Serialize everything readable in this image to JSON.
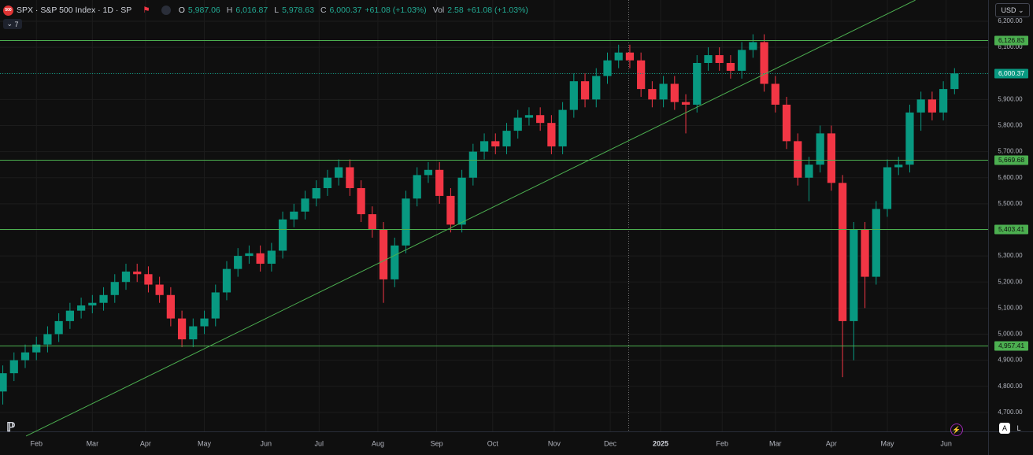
{
  "header": {
    "symbol": "SPX · S&P 500 Index · 1D · SP",
    "o_label": "O",
    "open": "5,987.06",
    "h_label": "H",
    "high": "6,016.87",
    "l_label": "L",
    "low": "5,978.63",
    "c_label": "C",
    "close": "6,000.37",
    "change": "+61.08 (+1.03%)",
    "vol_label": "Vol",
    "vol": "2.58",
    "vol_change": "+61.08 (+1.03%)",
    "indicators_count": "7",
    "currency": "USD",
    "scale_buttons": [
      "A",
      "L"
    ]
  },
  "chart_data": {
    "type": "candlestick",
    "up_color": "#089981",
    "down_color": "#f23645",
    "xlim": [
      0,
      353
    ],
    "ylim": [
      4627,
      6281.5
    ],
    "xticks": [
      {
        "value": 13,
        "label": "Feb"
      },
      {
        "value": 33,
        "label": "Mar"
      },
      {
        "value": 52,
        "label": "Apr"
      },
      {
        "value": 73,
        "label": "May"
      },
      {
        "value": 95,
        "label": "Jun"
      },
      {
        "value": 114,
        "label": "Jul"
      },
      {
        "value": 135,
        "label": "Aug"
      },
      {
        "value": 156,
        "label": "Sep"
      },
      {
        "value": 176,
        "label": "Oct"
      },
      {
        "value": 198,
        "label": "Nov"
      },
      {
        "value": 218,
        "label": "Dec"
      },
      {
        "value": 236,
        "label": "2025"
      },
      {
        "value": 258,
        "label": "Feb"
      },
      {
        "value": 277,
        "label": "Mar"
      },
      {
        "value": 297,
        "label": "Apr"
      },
      {
        "value": 317,
        "label": "May"
      },
      {
        "value": 338,
        "label": "Jun"
      }
    ],
    "yticks": [
      {
        "value": 6200,
        "label": "6,200.00"
      },
      {
        "value": 6100,
        "label": "6,100.00"
      },
      {
        "value": 6000,
        "label": "6,000.00"
      },
      {
        "value": 5900,
        "label": "5,900.00"
      },
      {
        "value": 5800,
        "label": "5,800.00"
      },
      {
        "value": 5700,
        "label": "5,700.00"
      },
      {
        "value": 5600,
        "label": "5,600.00"
      },
      {
        "value": 5500,
        "label": "5,500.00"
      },
      {
        "value": 5400,
        "label": "5,400.00"
      },
      {
        "value": 5300,
        "label": "5,300.00"
      },
      {
        "value": 5200,
        "label": "5,200.00"
      },
      {
        "value": 5100,
        "label": "5,100.00"
      },
      {
        "value": 5000,
        "label": "5,000.00"
      },
      {
        "value": 4900,
        "label": "4,900.00"
      },
      {
        "value": 4800,
        "label": "4,800.00"
      },
      {
        "value": 4700,
        "label": "4,700.00"
      }
    ],
    "grid": true,
    "x": [
      1,
      5,
      9,
      13,
      17,
      21,
      25,
      29,
      33,
      37,
      41,
      45,
      49,
      53,
      57,
      61,
      65,
      69,
      73,
      77,
      81,
      85,
      89,
      93,
      97,
      101,
      105,
      109,
      113,
      117,
      121,
      125,
      129,
      133,
      137,
      141,
      145,
      149,
      153,
      157,
      161,
      165,
      169,
      173,
      177,
      181,
      185,
      189,
      193,
      197,
      201,
      205,
      209,
      213,
      217,
      221,
      225,
      229,
      233,
      237,
      241,
      245,
      249,
      253,
      257,
      261,
      265,
      269,
      273,
      277,
      281,
      285,
      289,
      293,
      297,
      301,
      305,
      309,
      313,
      317,
      321,
      325,
      329,
      333,
      337,
      341
    ],
    "open": [
      4780,
      4850,
      4900,
      4930,
      4960,
      5000,
      5050,
      5090,
      5110,
      5120,
      5150,
      5200,
      5240,
      5230,
      5190,
      5150,
      5060,
      4980,
      5030,
      5060,
      5160,
      5250,
      5300,
      5310,
      5270,
      5320,
      5440,
      5470,
      5520,
      5560,
      5600,
      5640,
      5560,
      5460,
      5400,
      5210,
      5340,
      5520,
      5610,
      5630,
      5530,
      5420,
      5600,
      5700,
      5740,
      5720,
      5780,
      5830,
      5840,
      5810,
      5720,
      5860,
      5970,
      5900,
      5990,
      6050,
      6080,
      6050,
      5940,
      5900,
      5960,
      5890,
      5880,
      6040,
      6070,
      6040,
      6010,
      6090,
      6120,
      5960,
      5880,
      5740,
      5600,
      5650,
      5770,
      5580,
      5050,
      5400,
      5220,
      5480,
      5640,
      5650,
      5850,
      5900,
      5850,
      5940
    ],
    "high": [
      4880,
      4930,
      4960,
      4990,
      5030,
      5080,
      5120,
      5140,
      5150,
      5180,
      5230,
      5270,
      5270,
      5260,
      5220,
      5180,
      5090,
      5060,
      5090,
      5190,
      5280,
      5330,
      5340,
      5340,
      5350,
      5470,
      5500,
      5550,
      5590,
      5630,
      5670,
      5670,
      5590,
      5490,
      5430,
      5370,
      5550,
      5640,
      5660,
      5660,
      5560,
      5630,
      5730,
      5770,
      5770,
      5810,
      5860,
      5870,
      5870,
      5840,
      5890,
      6000,
      6000,
      6020,
      6080,
      6110,
      6110,
      6080,
      5970,
      5990,
      5990,
      5920,
      6070,
      6100,
      6100,
      6070,
      6120,
      6150,
      6150,
      5990,
      5910,
      5770,
      5680,
      5800,
      5800,
      5610,
      5430,
      5430,
      5510,
      5670,
      5680,
      5880,
      5930,
      5930,
      5970,
      6020
    ],
    "low": [
      4730,
      4820,
      4870,
      4900,
      4930,
      4970,
      5020,
      5060,
      5080,
      5090,
      5120,
      5170,
      5200,
      5160,
      5120,
      5030,
      4950,
      4950,
      5000,
      5030,
      5130,
      5220,
      5270,
      5240,
      5240,
      5290,
      5410,
      5440,
      5490,
      5530,
      5570,
      5530,
      5430,
      5370,
      5120,
      5180,
      5310,
      5490,
      5580,
      5500,
      5390,
      5390,
      5570,
      5670,
      5690,
      5690,
      5750,
      5800,
      5780,
      5690,
      5690,
      5830,
      5870,
      5870,
      5960,
      6020,
      6020,
      5910,
      5870,
      5870,
      5860,
      5770,
      5850,
      6010,
      6010,
      5980,
      5980,
      6060,
      5930,
      5850,
      5710,
      5570,
      5510,
      5620,
      5550,
      4835,
      4900,
      5100,
      5190,
      5450,
      5610,
      5620,
      5780,
      5820,
      5820,
      5920
    ],
    "close": [
      4850,
      4900,
      4930,
      4960,
      5000,
      5050,
      5090,
      5110,
      5120,
      5150,
      5200,
      5240,
      5230,
      5190,
      5150,
      5060,
      4980,
      5030,
      5060,
      5160,
      5250,
      5300,
      5310,
      5270,
      5320,
      5440,
      5470,
      5520,
      5560,
      5600,
      5640,
      5560,
      5460,
      5400,
      5210,
      5340,
      5520,
      5610,
      5630,
      5530,
      5420,
      5600,
      5700,
      5740,
      5720,
      5780,
      5830,
      5840,
      5810,
      5720,
      5860,
      5970,
      5900,
      5990,
      6050,
      6080,
      6050,
      5940,
      5900,
      5960,
      5890,
      5880,
      6040,
      6070,
      6040,
      6010,
      6090,
      6120,
      5960,
      5880,
      5740,
      5600,
      5650,
      5770,
      5580,
      5050,
      5400,
      5220,
      5480,
      5640,
      5650,
      5850,
      5900,
      5850,
      5940,
      6000
    ],
    "levels": {
      "color": "#4caf50",
      "values": [
        6126.83,
        5669.68,
        5403.41,
        4957.41
      ],
      "value_labels": [
        "6,126.83",
        "5,669.68",
        "5,403.41",
        "4,957.41"
      ]
    },
    "last_price": {
      "color": "#089981",
      "value": 6000.37,
      "value_label": "6,000.37"
    },
    "trendline": {
      "color": "#4caf50",
      "x": [
        9.3,
        327
      ],
      "y": [
        4609,
        6281
      ]
    }
  }
}
